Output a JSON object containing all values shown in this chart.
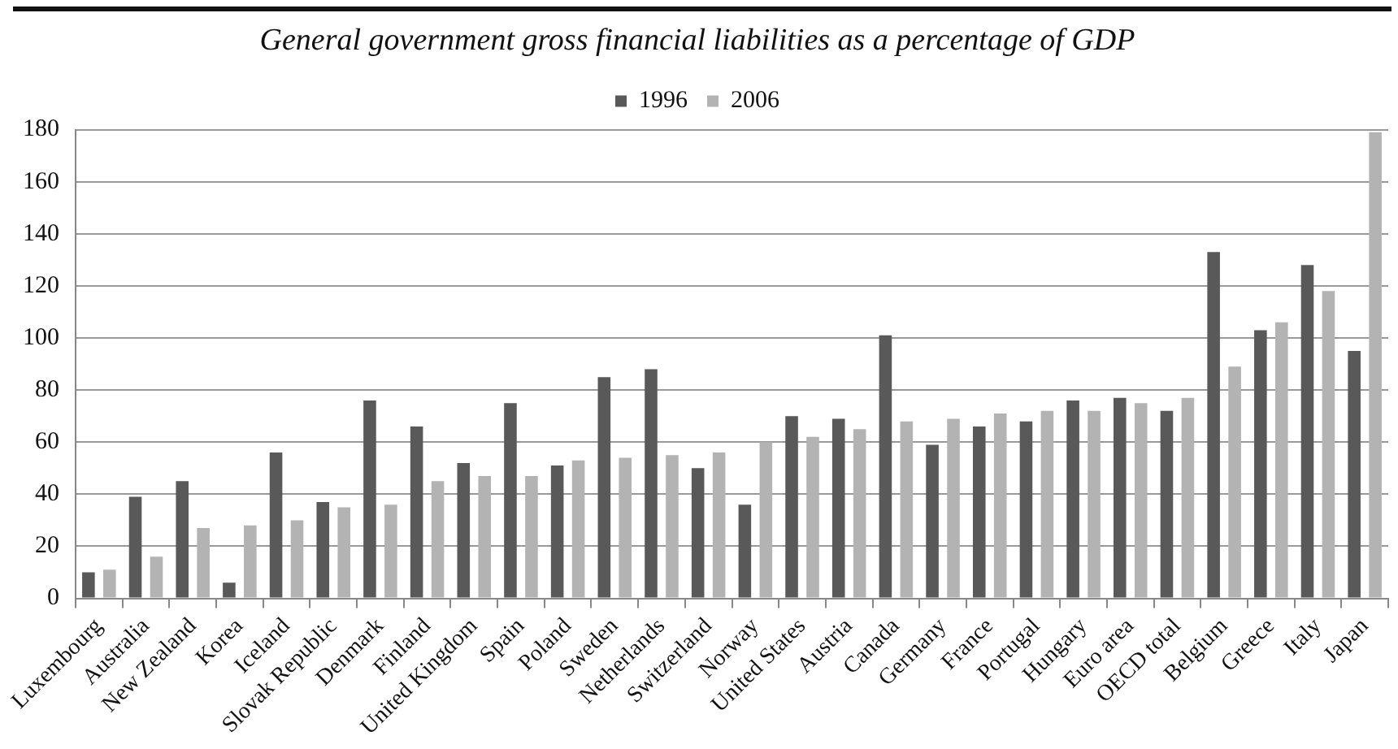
{
  "chart_data": {
    "type": "bar",
    "title": "General government gross financial liabilities as a percentage of GDP",
    "categories": [
      "Luxembourg",
      "Australia",
      "New Zealand",
      "Korea",
      "Iceland",
      "Slovak Republic",
      "Denmark",
      "Finland",
      "United Kingdom",
      "Spain",
      "Poland",
      "Sweden",
      "Netherlands",
      "Switzerland",
      "Norway",
      "United States",
      "Austria",
      "Canada",
      "Germany",
      "France",
      "Portugal",
      "Hungary",
      "Euro area",
      "OECD total",
      "Belgium",
      "Greece",
      "Italy",
      "Japan"
    ],
    "series": [
      {
        "name": "1996",
        "color": "#595959",
        "values": [
          10,
          39,
          45,
          6,
          56,
          37,
          76,
          66,
          52,
          75,
          51,
          85,
          88,
          50,
          36,
          70,
          69,
          101,
          59,
          66,
          68,
          76,
          77,
          72,
          133,
          103,
          128,
          95
        ]
      },
      {
        "name": "2006",
        "color": "#b3b3b3",
        "values": [
          11,
          16,
          27,
          28,
          30,
          35,
          36,
          45,
          47,
          47,
          53,
          54,
          55,
          56,
          60,
          62,
          65,
          68,
          69,
          71,
          72,
          72,
          75,
          77,
          89,
          106,
          118,
          179
        ]
      }
    ],
    "ylim": [
      0,
      180
    ],
    "yticks": [
      0,
      20,
      40,
      60,
      80,
      100,
      120,
      140,
      160,
      180
    ],
    "grid": "y",
    "legend": "top"
  }
}
